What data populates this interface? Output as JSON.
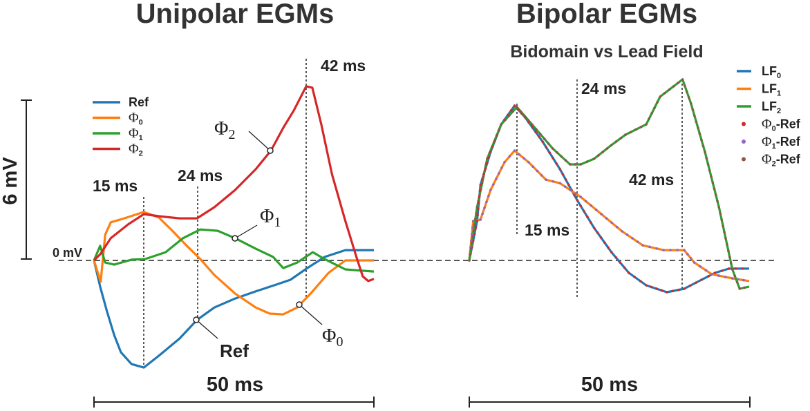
{
  "chart_data": [
    {
      "type": "line",
      "title": "Unipolar EGMs",
      "units": {
        "x": "ms",
        "y": "mV"
      },
      "scale_bars": {
        "x_label": "50 ms",
        "y_label": "6 mV",
        "zero_label": "0 mV"
      },
      "annotations": [
        "15 ms",
        "24 ms",
        "42 ms"
      ],
      "series": [
        {
          "name": "Ref",
          "color": "#1f77b4",
          "label": "Ref",
          "points": [
            [
              0,
              0
            ],
            [
              1.1,
              -0.99
            ],
            [
              2.3,
              -1.91
            ],
            [
              3.6,
              -2.82
            ],
            [
              4.8,
              -3.47
            ],
            [
              6.7,
              -3.92
            ],
            [
              8.9,
              -4.05
            ],
            [
              11.6,
              -3.6
            ],
            [
              15.3,
              -2.95
            ],
            [
              18.4,
              -2.25
            ],
            [
              21.5,
              -1.78
            ],
            [
              25.2,
              -1.44
            ],
            [
              28.9,
              -1.17
            ],
            [
              32.6,
              -0.91
            ],
            [
              35.1,
              -0.73
            ],
            [
              38.1,
              -0.29
            ],
            [
              41.2,
              0.13
            ],
            [
              44.9,
              0.39
            ],
            [
              50,
              0.39
            ]
          ]
        },
        {
          "name": "Φ0",
          "color": "#ff7f0e",
          "label": "Φ",
          "sub": "0",
          "points": [
            [
              0,
              0
            ],
            [
              1.2,
              -0.81
            ],
            [
              2.0,
              0.97
            ],
            [
              3.0,
              1.44
            ],
            [
              5.4,
              1.59
            ],
            [
              8.9,
              1.83
            ],
            [
              11.6,
              1.62
            ],
            [
              14.1,
              1.1
            ],
            [
              16.5,
              0.57
            ],
            [
              19.0,
              0.05
            ],
            [
              21.5,
              -0.55
            ],
            [
              25.2,
              -1.25
            ],
            [
              28.9,
              -1.78
            ],
            [
              31.4,
              -2.01
            ],
            [
              33.8,
              -2.04
            ],
            [
              36.3,
              -1.78
            ],
            [
              38.7,
              -1.25
            ],
            [
              41.9,
              -0.47
            ],
            [
              44.9,
              0
            ],
            [
              50,
              0
            ]
          ]
        },
        {
          "name": "Φ1",
          "color": "#2ca02c",
          "label": "Φ",
          "sub": "1",
          "points": [
            [
              0,
              0
            ],
            [
              1.1,
              0.55
            ],
            [
              2.0,
              -0.08
            ],
            [
              3.6,
              -0.16
            ],
            [
              6.7,
              0.03
            ],
            [
              9.1,
              0.05
            ],
            [
              12.8,
              0.31
            ],
            [
              15.9,
              0.84
            ],
            [
              19.0,
              1.17
            ],
            [
              22.1,
              1.12
            ],
            [
              25.2,
              0.84
            ],
            [
              28.9,
              0.44
            ],
            [
              32.0,
              0.13
            ],
            [
              33.8,
              -0.29
            ],
            [
              36.3,
              -0.08
            ],
            [
              39.1,
              0.31
            ],
            [
              41.2,
              0.05
            ],
            [
              44.9,
              -0.34
            ],
            [
              50,
              -0.42
            ]
          ]
        },
        {
          "name": "Φ2",
          "color": "#d62728",
          "label": "Φ",
          "sub": "2",
          "points": [
            [
              0,
              0
            ],
            [
              1.1,
              0.23
            ],
            [
              3.0,
              0.84
            ],
            [
              6.1,
              1.36
            ],
            [
              8.9,
              1.75
            ],
            [
              11.6,
              1.67
            ],
            [
              15.3,
              1.59
            ],
            [
              18.4,
              1.59
            ],
            [
              21.5,
              2.01
            ],
            [
              25.2,
              2.66
            ],
            [
              28.9,
              3.45
            ],
            [
              31.6,
              4.15
            ],
            [
              33.8,
              5.01
            ],
            [
              35.7,
              5.67
            ],
            [
              37.9,
              6.58
            ],
            [
              39.0,
              6.53
            ],
            [
              40.6,
              5.14
            ],
            [
              42.5,
              3.26
            ],
            [
              44.9,
              1.49
            ],
            [
              46.8,
              0.18
            ],
            [
              48.0,
              -0.6
            ],
            [
              49.0,
              -0.78
            ],
            [
              50,
              -0.7
            ]
          ]
        }
      ]
    },
    {
      "type": "line",
      "title": "Bipolar EGMs",
      "subtitle": "Bidomain vs Lead Field",
      "units": {
        "x": "ms",
        "y": "mV"
      },
      "scale_bars": {
        "x_label": "50 ms"
      },
      "annotations": [
        "15 ms",
        "24 ms",
        "42 ms"
      ],
      "series": [
        {
          "name": "LF0",
          "color": "#1f77b4",
          "style": "line",
          "label": "LF",
          "sub": "0",
          "points": [
            [
              0,
              0
            ],
            [
              1.4,
              1.49
            ],
            [
              2.0,
              2.85
            ],
            [
              3.8,
              4.1
            ],
            [
              5.7,
              5.14
            ],
            [
              8.1,
              5.85
            ],
            [
              10.0,
              5.4
            ],
            [
              13.1,
              4.49
            ],
            [
              16.2,
              3.45
            ],
            [
              19.3,
              2.27
            ],
            [
              22.3,
              1.23
            ],
            [
              25.4,
              0.31
            ],
            [
              28.5,
              -0.47
            ],
            [
              31.6,
              -0.94
            ],
            [
              35.3,
              -1.2
            ],
            [
              38.4,
              -1.07
            ],
            [
              41.5,
              -0.73
            ],
            [
              43.9,
              -0.47
            ],
            [
              46.4,
              -0.31
            ],
            [
              50,
              -0.31
            ]
          ]
        },
        {
          "name": "LF1",
          "color": "#ff7f0e",
          "style": "line",
          "label": "LF",
          "sub": "1",
          "points": [
            [
              0,
              0
            ],
            [
              0.7,
              1.49
            ],
            [
              2.0,
              1.54
            ],
            [
              3.8,
              2.66
            ],
            [
              6.3,
              3.71
            ],
            [
              8.1,
              4.15
            ],
            [
              10.6,
              3.71
            ],
            [
              13.7,
              3.05
            ],
            [
              16.2,
              2.92
            ],
            [
              19.9,
              2.4
            ],
            [
              23.6,
              1.75
            ],
            [
              27.3,
              1.1
            ],
            [
              31.0,
              0.57
            ],
            [
              34.7,
              0.39
            ],
            [
              38.4,
              0.39
            ],
            [
              40.2,
              -0.08
            ],
            [
              43.3,
              -0.52
            ],
            [
              47.0,
              -0.68
            ],
            [
              50,
              -0.78
            ]
          ]
        },
        {
          "name": "LF2",
          "color": "#2ca02c",
          "style": "line",
          "label": "LF",
          "sub": "2",
          "points": [
            [
              0,
              0
            ],
            [
              1.4,
              2.01
            ],
            [
              3.2,
              3.84
            ],
            [
              5.7,
              5.14
            ],
            [
              8.5,
              5.8
            ],
            [
              11.2,
              5.14
            ],
            [
              14.9,
              4.23
            ],
            [
              18.0,
              3.63
            ],
            [
              19.9,
              3.63
            ],
            [
              22.3,
              3.84
            ],
            [
              25.4,
              4.36
            ],
            [
              27.9,
              4.75
            ],
            [
              31.6,
              5.14
            ],
            [
              34.1,
              6.19
            ],
            [
              36.5,
              6.58
            ],
            [
              38.1,
              6.84
            ],
            [
              39.6,
              5.93
            ],
            [
              42.1,
              4.1
            ],
            [
              44.6,
              2.01
            ],
            [
              47.0,
              -0.34
            ],
            [
              48.3,
              -1.07
            ],
            [
              50,
              -0.99
            ]
          ]
        },
        {
          "name": "Φ0-Ref",
          "color": "#d62728",
          "style": "dots",
          "label": "Φ",
          "sub": "0",
          "suffix": "-Ref",
          "follows": 0
        },
        {
          "name": "Φ1-Ref",
          "color": "#9467bd",
          "style": "dots",
          "label": "Φ",
          "sub": "1",
          "suffix": "-Ref",
          "follows": 1
        },
        {
          "name": "Φ2-Ref",
          "color": "#8c564b",
          "style": "dots",
          "label": "Φ",
          "sub": "2",
          "suffix": "-Ref",
          "follows": 2
        }
      ]
    }
  ]
}
